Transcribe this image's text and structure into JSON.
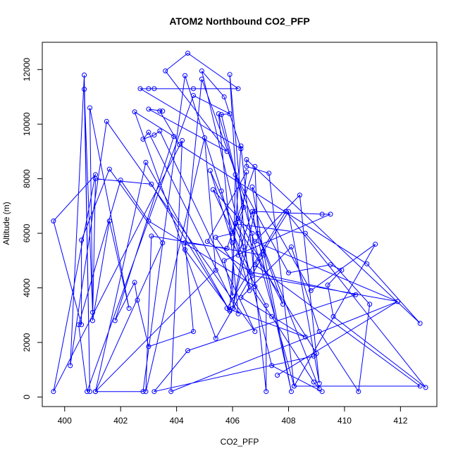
{
  "chart_data": {
    "type": "scatter",
    "title": "ATOM2 Northbound CO2_PFP",
    "xlabel": "CO2_PFP",
    "ylabel": "Altitude (m)",
    "xlim": [
      399.2,
      413.3
    ],
    "ylim": [
      -350,
      13000
    ],
    "xticks": [
      400,
      402,
      404,
      406,
      408,
      410,
      412
    ],
    "yticks": [
      0,
      2000,
      4000,
      6000,
      8000,
      10000,
      12000
    ],
    "connect_points": true,
    "color": "#0000ff",
    "series": [
      {
        "values": [
          [
            409.2,
            200
          ],
          [
            407.4,
            1150
          ],
          [
            404.9,
            11950
          ],
          [
            405.7,
            11000
          ],
          [
            406.3,
            9100
          ],
          [
            402.7,
            11300
          ],
          [
            403.0,
            11300
          ],
          [
            403.2,
            11300
          ],
          [
            404.6,
            11300
          ],
          [
            406.2,
            11300
          ],
          [
            404.4,
            12600
          ],
          [
            403.6,
            11950
          ],
          [
            405.8,
            9000
          ],
          [
            403.0,
            10550
          ],
          [
            403.5,
            10480
          ],
          [
            403.4,
            10480
          ],
          [
            404.1,
            9250
          ],
          [
            410.8,
            4880
          ],
          [
            412.7,
            2700
          ],
          [
            406.5,
            8700
          ],
          [
            406.5,
            8450
          ],
          [
            407.3,
            8200
          ],
          [
            408.2,
            400
          ],
          [
            405.5,
            10380
          ],
          [
            406.2,
            3050
          ],
          [
            403.0,
            9700
          ],
          [
            402.8,
            9450
          ],
          [
            403.2,
            9600
          ],
          [
            403.4,
            9750
          ],
          [
            406.8,
            2400
          ],
          [
            401.5,
            10100
          ],
          [
            400.2,
            1150
          ],
          [
            400.7,
            11800
          ],
          [
            400.9,
            200
          ],
          [
            400.7,
            11280
          ],
          [
            401.0,
            3100
          ],
          [
            400.9,
            10600
          ],
          [
            402.3,
            3250
          ],
          [
            401.6,
            6450
          ],
          [
            401.0,
            2800
          ],
          [
            401.1,
            8000
          ],
          [
            403.1,
            7800
          ],
          [
            405.9,
            3150
          ],
          [
            402.9,
            8600
          ],
          [
            401.1,
            200
          ],
          [
            402.8,
            200
          ],
          [
            404.3,
            11780
          ],
          [
            405.6,
            7550
          ],
          [
            406.6,
            3900
          ],
          [
            405.9,
            11820
          ],
          [
            406.2,
            6550
          ],
          [
            407.8,
            3400
          ],
          [
            404.9,
            11650
          ],
          [
            404.3,
            5400
          ],
          [
            405.9,
            3200
          ],
          [
            406.3,
            9200
          ],
          [
            407.2,
            200
          ],
          [
            407.2,
            3350
          ],
          [
            406.0,
            5650
          ],
          [
            405.2,
            8300
          ],
          [
            406.4,
            5500
          ],
          [
            406.0,
            3250
          ],
          [
            406.8,
            6800
          ],
          [
            409.2,
            6700
          ],
          [
            409.5,
            6700
          ],
          [
            405.7,
            5000
          ],
          [
            406.0,
            3700
          ],
          [
            406.1,
            8150
          ],
          [
            408.0,
            4550
          ],
          [
            409.5,
            4850
          ],
          [
            409.9,
            4650
          ],
          [
            409.4,
            4100
          ],
          [
            409.6,
            2950
          ],
          [
            412.9,
            350
          ],
          [
            407.9,
            6800
          ],
          [
            405.8,
            3250
          ],
          [
            408.6,
            2200
          ],
          [
            406.3,
            3650
          ],
          [
            408.1,
            5500
          ],
          [
            409.1,
            2400
          ],
          [
            410.5,
            200
          ],
          [
            410.9,
            3400
          ],
          [
            408.6,
            6000
          ],
          [
            406.1,
            6350
          ],
          [
            409.0,
            1600
          ],
          [
            408.9,
            1500
          ],
          [
            403.2,
            200
          ],
          [
            404.4,
            1700
          ],
          [
            410.4,
            3750
          ],
          [
            406.6,
            4600
          ],
          [
            405.1,
            5700
          ],
          [
            406.5,
            8250
          ],
          [
            406.2,
            5200
          ],
          [
            406.7,
            6800
          ],
          [
            408.1,
            200
          ],
          [
            407.1,
            5350
          ],
          [
            406.7,
            7700
          ],
          [
            408.8,
            3900
          ],
          [
            411.1,
            5600
          ],
          [
            408.2,
            400
          ],
          [
            412.7,
            400
          ],
          [
            406.8,
            4850
          ],
          [
            408.0,
            6800
          ],
          [
            409.1,
            500
          ],
          [
            408.4,
            7400
          ],
          [
            406.8,
            5700
          ],
          [
            411.9,
            3500
          ],
          [
            406.7,
            4450
          ],
          [
            405.3,
            7600
          ],
          [
            406.7,
            6000
          ],
          [
            406.8,
            4050
          ],
          [
            403.0,
            6450
          ],
          [
            402.0,
            7950
          ],
          [
            400.5,
            2650
          ],
          [
            400.8,
            200
          ],
          [
            404.6,
            11050
          ],
          [
            405.9,
            10380
          ],
          [
            405.6,
            10350
          ],
          [
            406.4,
            6950
          ],
          [
            406.0,
            6000
          ],
          [
            405.4,
            5850
          ],
          [
            407.4,
            2950
          ],
          [
            408.9,
            550
          ],
          [
            409.1,
            300
          ],
          [
            406.9,
            6000
          ],
          [
            406.8,
            8450
          ],
          [
            405.8,
            5450
          ],
          [
            404.3,
            5650
          ],
          [
            404.6,
            2400
          ],
          [
            403.0,
            1850
          ],
          [
            402.6,
            3550
          ],
          [
            402.5,
            4200
          ],
          [
            401.8,
            2800
          ],
          [
            403.9,
            9550
          ],
          [
            402.5,
            10450
          ],
          [
            405.4,
            2150
          ],
          [
            407.1,
            5200
          ],
          [
            403.1,
            5900
          ],
          [
            402.9,
            200
          ],
          [
            405.0,
            9500
          ],
          [
            405.4,
            4650
          ],
          [
            401.1,
            200
          ],
          [
            403.5,
            5650
          ],
          [
            401.6,
            8350
          ],
          [
            400.6,
            5750
          ],
          [
            400.6,
            2650
          ],
          [
            399.6,
            6450
          ],
          [
            401.1,
            8150
          ],
          [
            399.6,
            200
          ],
          [
            404.2,
            9400
          ],
          [
            403.8,
            200
          ],
          [
            411.9,
            3500
          ],
          [
            407.6,
            800
          ]
        ]
      }
    ]
  }
}
